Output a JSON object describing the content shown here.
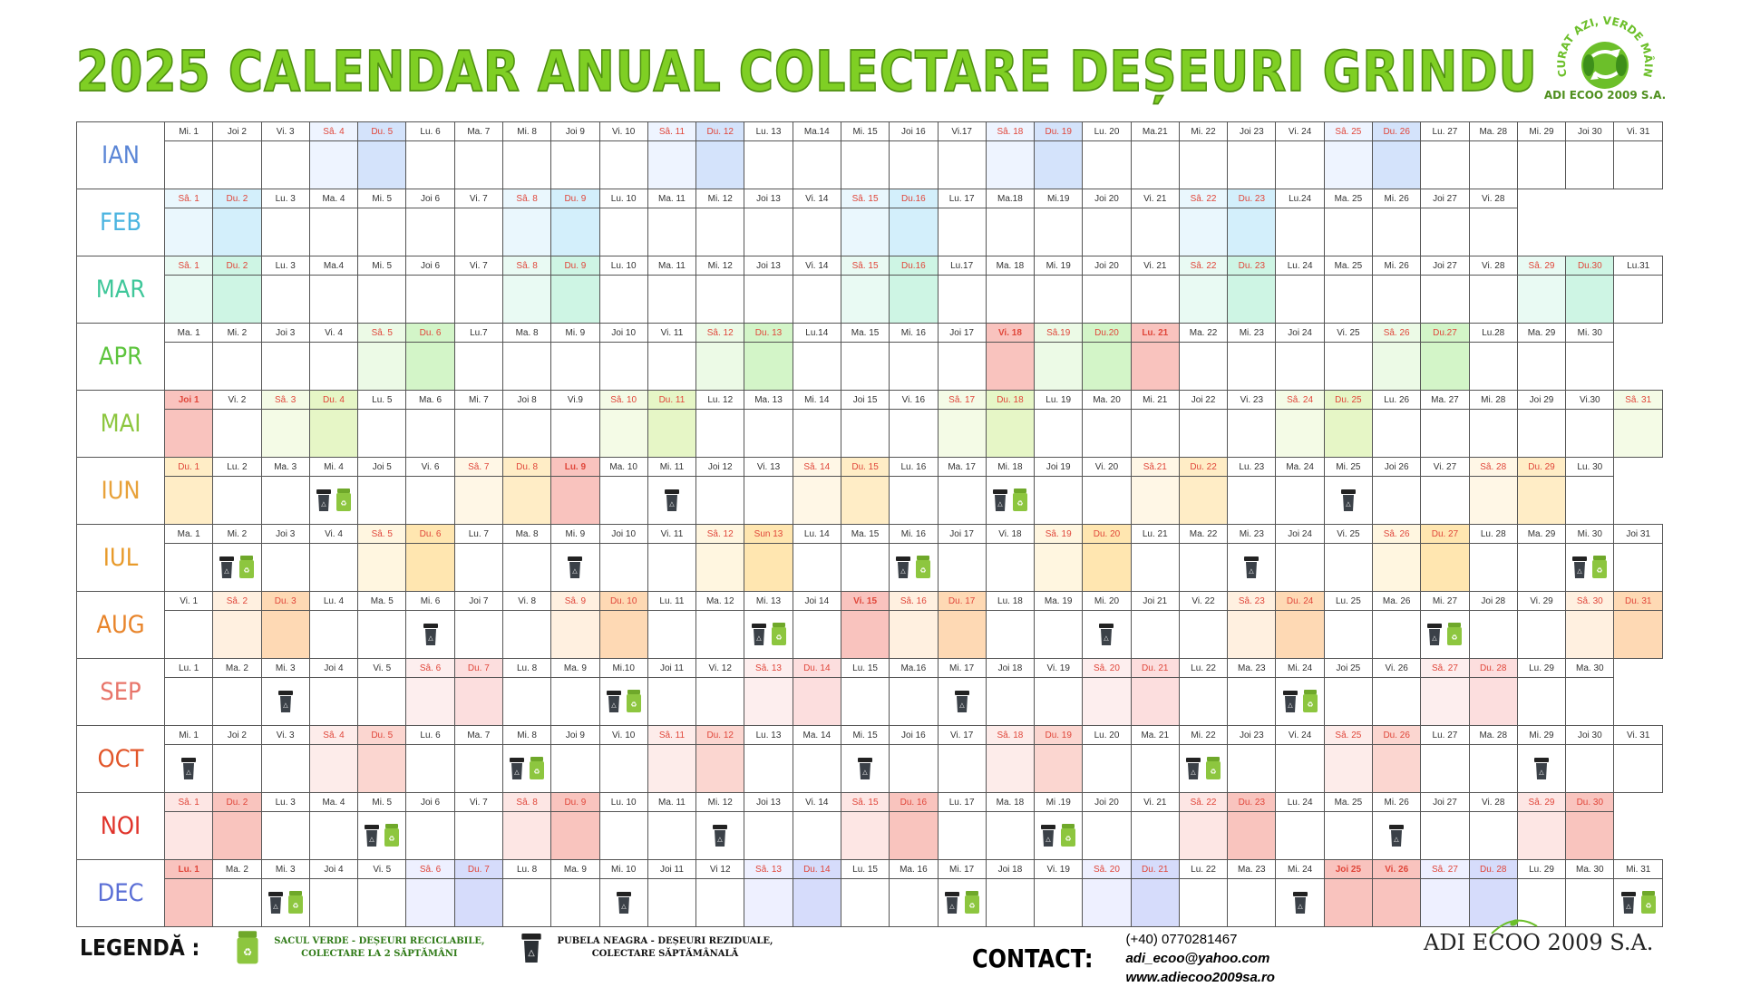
{
  "title": "2025 CALENDAR ANUAL COLECTARE DEȘEURI GRINDU",
  "logo": {
    "ring_text": "CURAT AZI, VERDE MÂINE",
    "brand": "ADI ECOO 2009 S.A."
  },
  "colors": {
    "title": "#7fcf24",
    "green_bag": "#8dc63f",
    "black_bin": "#3b4148"
  },
  "months": [
    {
      "name": "IAN",
      "color": "#5b86d6",
      "light": "#eef4ff",
      "dark": "#d4e3fb",
      "days": [
        "Mi. 1",
        "Joi 2",
        "Vi. 3",
        "Sâ. 4",
        "Du. 5",
        "Lu. 6",
        "Ma. 7",
        "Mi. 8",
        "Joi 9",
        "Vi. 10",
        "Sâ. 11",
        "Du. 12",
        "Lu. 13",
        "Ma.14",
        "Mi. 15",
        "Joi 16",
        "Vi.17",
        "Sâ. 18",
        "Du. 19",
        "Lu. 20",
        "Ma.21",
        "Mi. 22",
        "Joi 23",
        "Vi. 24",
        "Sâ. 25",
        "Du. 26",
        "Lu. 27",
        "Ma. 28",
        "Mi. 29",
        "Joi 30",
        "Vi. 31"
      ],
      "light_idx": [
        3,
        10,
        17,
        24
      ],
      "dark_idx": [
        4,
        11,
        18,
        25
      ],
      "red_idx": [
        3,
        4,
        10,
        11,
        17,
        18,
        24,
        25
      ],
      "holiday_idx": [],
      "icons": {}
    },
    {
      "name": "FEB",
      "color": "#4bb4e0",
      "light": "#eaf7fd",
      "dark": "#d3effb",
      "days": [
        "Sâ. 1",
        "Du. 2",
        "Lu. 3",
        "Ma. 4",
        "Mi. 5",
        "Joi 6",
        "Vi. 7",
        "Sâ. 8",
        "Du. 9",
        "Lu. 10",
        "Ma. 11",
        "Mi. 12",
        "Joi 13",
        "Vi. 14",
        "Sâ. 15",
        "Du.16",
        "Lu. 17",
        "Ma.18",
        "Mi.19",
        "Joi 20",
        "Vi. 21",
        "Sâ. 22",
        "Du. 23",
        "Lu.24",
        "Ma. 25",
        "Mi. 26",
        "Joi 27",
        "Vi. 28"
      ],
      "light_idx": [
        0,
        7,
        14,
        21
      ],
      "dark_idx": [
        1,
        8,
        15,
        22
      ],
      "red_idx": [
        0,
        1,
        7,
        8,
        14,
        15,
        21,
        22
      ],
      "holiday_idx": [],
      "icons": {}
    },
    {
      "name": "MAR",
      "color": "#3fc79a",
      "light": "#e9faf3",
      "dark": "#cef5e4",
      "days": [
        "Sâ. 1",
        "Du. 2",
        "Lu. 3",
        "Ma.4",
        "Mi. 5",
        "Joi 6",
        "Vi. 7",
        "Sâ. 8",
        "Du. 9",
        "Lu. 10",
        "Ma. 11",
        "Mi. 12",
        "Joi 13",
        "Vi. 14",
        "Sâ. 15",
        "Du.16",
        "Lu.17",
        "Ma. 18",
        "Mi. 19",
        "Joi 20",
        "Vi. 21",
        "Sâ. 22",
        "Du. 23",
        "Lu. 24",
        "Ma. 25",
        "Mi. 26",
        "Joi 27",
        "Vi. 28",
        "Sâ. 29",
        "Du.30",
        "Lu.31"
      ],
      "light_idx": [
        0,
        7,
        14,
        21,
        28
      ],
      "dark_idx": [
        1,
        8,
        15,
        22,
        29
      ],
      "red_idx": [
        0,
        1,
        7,
        8,
        14,
        15,
        21,
        22,
        28,
        29
      ],
      "holiday_idx": [],
      "icons": {}
    },
    {
      "name": "APR",
      "color": "#5cc43c",
      "light": "#ecfae6",
      "dark": "#d3f5c8",
      "days": [
        "Ma. 1",
        "Mi. 2",
        "Joi 3",
        "Vi. 4",
        "Sâ. 5",
        "Du. 6",
        "Lu.7",
        "Ma. 8",
        "Mi. 9",
        "Joi 10",
        "Vi. 11",
        "Sâ. 12",
        "Du. 13",
        "Lu.14",
        "Ma. 15",
        "Mi. 16",
        "Joi 17",
        "Vi. 18",
        "Sâ.19",
        "Du.20",
        "Lu. 21",
        "Ma. 22",
        "Mi. 23",
        "Joi 24",
        "Vi. 25",
        "Sâ. 26",
        "Du.27",
        "Lu.28",
        "Ma. 29",
        "Mi. 30"
      ],
      "light_idx": [
        4,
        11,
        18,
        25
      ],
      "dark_idx": [
        5,
        12,
        19,
        26
      ],
      "red_idx": [
        4,
        5,
        11,
        12,
        18,
        19,
        25,
        26
      ],
      "holiday_idx": [
        17,
        20
      ],
      "icons": {}
    },
    {
      "name": "MAI",
      "color": "#8dc63f",
      "light": "#f4fbe6",
      "dark": "#e6f6c6",
      "days": [
        "Joi 1",
        "Vi. 2",
        "Sâ. 3",
        "Du. 4",
        "Lu. 5",
        "Ma. 6",
        "Mi. 7",
        "Joi 8",
        "Vi.9",
        "Sâ. 10",
        "Du. 11",
        "Lu. 12",
        "Ma. 13",
        "Mi. 14",
        "Joi 15",
        "Vi. 16",
        "Sâ. 17",
        "Du. 18",
        "Lu. 19",
        "Ma. 20",
        "Mi. 21",
        "Joi 22",
        "Vi. 23",
        "Sâ. 24",
        "Du. 25",
        "Lu. 26",
        "Ma. 27",
        "Mi. 28",
        "Joi 29",
        "Vi.30",
        "Sâ. 31"
      ],
      "light_idx": [
        2,
        9,
        16,
        23,
        30
      ],
      "dark_idx": [
        3,
        10,
        17,
        24
      ],
      "red_idx": [
        2,
        3,
        9,
        10,
        16,
        17,
        23,
        24,
        30
      ],
      "holiday_idx": [
        0
      ],
      "icons": {}
    },
    {
      "name": "IUN",
      "color": "#e8a23a",
      "light": "#fff7e6",
      "dark": "#ffedc6",
      "days": [
        "Du. 1",
        "Lu. 2",
        "Ma. 3",
        "Mi. 4",
        "Joi 5",
        "Vi. 6",
        "Sâ. 7",
        "Du. 8",
        "Lu. 9",
        "Ma. 10",
        "Mi. 11",
        "Joi 12",
        "Vi. 13",
        "Sâ. 14",
        "Du. 15",
        "Lu. 16",
        "Ma. 17",
        "Mi. 18",
        "Joi 19",
        "Vi. 20",
        "Sâ.21",
        "Du. 22",
        "Lu. 23",
        "Ma. 24",
        "Mi. 25",
        "Joi 26",
        "Vi. 27",
        "Sâ. 28",
        "Du. 29",
        "Lu. 30"
      ],
      "light_idx": [
        6,
        13,
        20,
        27
      ],
      "dark_idx": [
        0,
        7,
        14,
        21,
        28
      ],
      "red_idx": [
        0,
        6,
        7,
        13,
        14,
        20,
        21,
        27,
        28
      ],
      "holiday_idx": [
        8
      ],
      "icons": {
        "3": "both",
        "10": "black",
        "17": "both",
        "24": "black"
      }
    },
    {
      "name": "IUL",
      "color": "#e89a2a",
      "light": "#fff6e0",
      "dark": "#ffe6b0",
      "days": [
        "Ma. 1",
        "Mi. 2",
        "Joi 3",
        "Vi. 4",
        "Sâ. 5",
        "Du. 6",
        "Lu. 7",
        "Ma. 8",
        "Mi. 9",
        "Joi 10",
        "Vi. 11",
        "Sâ. 12",
        "Sun 13",
        "Lu. 14",
        "Ma. 15",
        "Mi. 16",
        "Joi 17",
        "Vi. 18",
        "Sâ. 19",
        "Du. 20",
        "Lu. 21",
        "Ma. 22",
        "Mi. 23",
        "Joi 24",
        "Vi. 25",
        "Sâ. 26",
        "Du. 27",
        "Lu. 28",
        "Ma. 29",
        "Mi. 30",
        "Joi 31"
      ],
      "light_idx": [
        4,
        11,
        18,
        25
      ],
      "dark_idx": [
        5,
        12,
        19,
        26
      ],
      "red_idx": [
        4,
        5,
        11,
        12,
        18,
        19,
        25,
        26
      ],
      "holiday_idx": [],
      "icons": {
        "1": "both",
        "8": "black",
        "15": "both",
        "22": "black",
        "29": "both"
      }
    },
    {
      "name": "AUG",
      "color": "#e8842a",
      "light": "#fff0e0",
      "dark": "#fed9b4",
      "days": [
        "Vi. 1",
        "Sâ. 2",
        "Du. 3",
        "Lu. 4",
        "Ma. 5",
        "Mi. 6",
        "Joi 7",
        "Vi. 8",
        "Sâ. 9",
        "Du. 10",
        "Lu. 11",
        "Ma. 12",
        "Mi. 13",
        "Joi 14",
        "Vi. 15",
        "Sâ. 16",
        "Du. 17",
        "Lu. 18",
        "Ma. 19",
        "Mi. 20",
        "Joi 21",
        "Vi. 22",
        "Sâ. 23",
        "Du. 24",
        "Lu. 25",
        "Ma. 26",
        "Mi. 27",
        "Joi 28",
        "Vi. 29",
        "Sâ. 30",
        "Du. 31"
      ],
      "light_idx": [
        1,
        8,
        15,
        22,
        29
      ],
      "dark_idx": [
        2,
        9,
        16,
        23,
        30
      ],
      "red_idx": [
        1,
        2,
        8,
        9,
        14,
        15,
        16,
        22,
        23,
        29,
        30
      ],
      "holiday_idx": [
        14
      ],
      "icons": {
        "5": "black",
        "12": "both",
        "19": "black",
        "26": "both"
      }
    },
    {
      "name": "SEP",
      "color": "#e8756a",
      "light": "#fdeeee",
      "dark": "#fcdede",
      "days": [
        "Lu. 1",
        "Ma. 2",
        "Mi. 3",
        "Joi 4",
        "Vi. 5",
        "Sâ. 6",
        "Du. 7",
        "Lu. 8",
        "Ma. 9",
        "Mi.10",
        "Joi 11",
        "Vi. 12",
        "Sâ. 13",
        "Du. 14",
        "Lu. 15",
        "Ma.16",
        "Mi. 17",
        "Joi 18",
        "Vi. 19",
        "Sâ. 20",
        "Du. 21",
        "Lu. 22",
        "Ma. 23",
        "Mi. 24",
        "Joi 25",
        "Vi. 26",
        "Sâ. 27",
        "Du. 28",
        "Lu. 29",
        "Ma. 30"
      ],
      "light_idx": [
        5,
        12,
        19,
        26
      ],
      "dark_idx": [
        6,
        13,
        20,
        27
      ],
      "red_idx": [
        5,
        6,
        12,
        13,
        19,
        20,
        26,
        27
      ],
      "holiday_idx": [],
      "icons": {
        "2": "black",
        "9": "both",
        "16": "black",
        "23": "both"
      }
    },
    {
      "name": "OCT",
      "color": "#e2562a",
      "light": "#fdecea",
      "dark": "#fbd6d0",
      "days": [
        "Mi. 1",
        "Joi 2",
        "Vi. 3",
        "Sâ. 4",
        "Du. 5",
        "Lu. 6",
        "Ma. 7",
        "Mi. 8",
        "Joi 9",
        "Vi. 10",
        "Sâ. 11",
        "Du. 12",
        "Lu. 13",
        "Ma. 14",
        "Mi. 15",
        "Joi 16",
        "Vi. 17",
        "Sâ. 18",
        "Du. 19",
        "Lu. 20",
        "Ma. 21",
        "Mi. 22",
        "Joi 23",
        "Vi. 24",
        "Sâ. 25",
        "Du. 26",
        "Lu. 27",
        "Ma. 28",
        "Mi. 29",
        "Joi 30",
        "Vi. 31"
      ],
      "light_idx": [
        3,
        10,
        17,
        24
      ],
      "dark_idx": [
        4,
        11,
        18,
        25
      ],
      "red_idx": [
        3,
        4,
        10,
        11,
        17,
        18,
        24,
        25
      ],
      "holiday_idx": [],
      "icons": {
        "0": "black",
        "7": "both",
        "14": "black",
        "21": "both",
        "28": "black"
      }
    },
    {
      "name": "NOI",
      "color": "#e0332a",
      "light": "#fde6e4",
      "dark": "#f9c4be",
      "days": [
        "Sâ. 1",
        "Du. 2",
        "Lu. 3",
        "Ma. 4",
        "Mi. 5",
        "Joi 6",
        "Vi. 7",
        "Sâ. 8",
        "Du. 9",
        "Lu. 10",
        "Ma. 11",
        "Mi. 12",
        "Joi 13",
        "Vi. 14",
        "Sâ. 15",
        "Du. 16",
        "Lu. 17",
        "Ma. 18",
        "Mi .19",
        "Joi 20",
        "Vi. 21",
        "Sâ. 22",
        "Du. 23",
        "Lu. 24",
        "Ma. 25",
        "Mi. 26",
        "Joi 27",
        "Vi. 28",
        "Sâ. 29",
        "Du. 30"
      ],
      "light_idx": [
        0,
        7,
        14,
        21,
        28
      ],
      "dark_idx": [
        1,
        8,
        15,
        22,
        29
      ],
      "red_idx": [
        0,
        1,
        7,
        8,
        14,
        15,
        21,
        22,
        28,
        29
      ],
      "holiday_idx": [],
      "icons": {
        "4": "both",
        "11": "black",
        "18": "both",
        "25": "black"
      }
    },
    {
      "name": "DEC",
      "color": "#5b6fd6",
      "light": "#eef0ff",
      "dark": "#d6dcfb",
      "days": [
        "Lu. 1",
        "Ma. 2",
        "Mi. 3",
        "Joi 4",
        "Vi. 5",
        "Sâ. 6",
        "Du. 7",
        "Lu. 8",
        "Ma. 9",
        "Mi. 10",
        "Joi 11",
        "Vi 12",
        "Sâ. 13",
        "Du. 14",
        "Lu. 15",
        "Ma. 16",
        "Mi. 17",
        "Joi 18",
        "Vi. 19",
        "Sâ. 20",
        "Du. 21",
        "Lu. 22",
        "Ma. 23",
        "Mi. 24",
        "Joi 25",
        "Vi. 26",
        "Sâ. 27",
        "Du. 28",
        "Lu. 29",
        "Ma. 30",
        "Mi. 31"
      ],
      "light_idx": [
        5,
        12,
        19,
        26
      ],
      "dark_idx": [
        6,
        13,
        20,
        27
      ],
      "red_idx": [
        5,
        6,
        12,
        13,
        19,
        20,
        26,
        27
      ],
      "holiday_idx": [
        0,
        24,
        25
      ],
      "icons": {
        "2": "both",
        "9": "black",
        "16": "both",
        "23": "black",
        "30": "both"
      }
    }
  ],
  "legend": {
    "title": "LEGENDĂ :",
    "green": {
      "line1": "SACUL VERDE - DEȘEURI RECICLABILE,",
      "line2": "COLECTARE LA 2 SĂPTĂMÂNI"
    },
    "black": {
      "line1": "PUBELA NEAGRA - DEȘEURI REZIDUALE,",
      "line2": "COLECTARE SĂPTĂMÂNALĂ"
    }
  },
  "contact": {
    "title": "CONTACT:",
    "phone": "(+40) 0770281467",
    "email": "adi_ecoo@yahoo.com",
    "web": "www.adiecoo2009sa.ro"
  },
  "brand_bottom": "ADI ECOO 2009 S.A."
}
